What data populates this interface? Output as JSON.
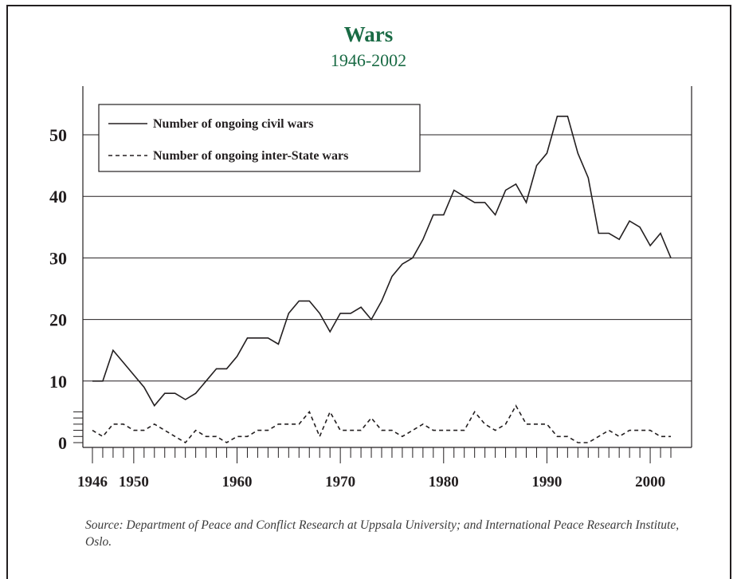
{
  "chart_data": {
    "type": "line",
    "title": "Wars",
    "subtitle": "1946-2002",
    "xlabel": "",
    "ylabel": "",
    "xlim": [
      1946,
      2002
    ],
    "ylim": [
      0,
      55
    ],
    "x_ticks": [
      1946,
      1950,
      1960,
      1970,
      1980,
      1990,
      2000
    ],
    "y_ticks": [
      0,
      10,
      20,
      30,
      40,
      50
    ],
    "grid": "horizontal",
    "legend_position": "top-left",
    "x": [
      1946,
      1947,
      1948,
      1949,
      1950,
      1951,
      1952,
      1953,
      1954,
      1955,
      1956,
      1957,
      1958,
      1959,
      1960,
      1961,
      1962,
      1963,
      1964,
      1965,
      1966,
      1967,
      1968,
      1969,
      1970,
      1971,
      1972,
      1973,
      1974,
      1975,
      1976,
      1977,
      1978,
      1979,
      1980,
      1981,
      1982,
      1983,
      1984,
      1985,
      1986,
      1987,
      1988,
      1989,
      1990,
      1991,
      1992,
      1993,
      1994,
      1995,
      1996,
      1997,
      1998,
      1999,
      2000,
      2001,
      2002
    ],
    "series": [
      {
        "name": "Number of ongoing civil wars",
        "style": "solid",
        "values": [
          10,
          10,
          15,
          13,
          11,
          9,
          6,
          8,
          8,
          7,
          8,
          10,
          12,
          12,
          14,
          17,
          17,
          17,
          16,
          21,
          23,
          23,
          21,
          18,
          21,
          21,
          22,
          20,
          23,
          27,
          29,
          30,
          33,
          37,
          37,
          41,
          40,
          39,
          39,
          37,
          41,
          42,
          39,
          45,
          47,
          53,
          53,
          47,
          43,
          34,
          34,
          33,
          36,
          35,
          32,
          34,
          30
        ]
      },
      {
        "name": "Number of ongoing inter-State wars",
        "style": "dashed",
        "values": [
          2,
          1,
          3,
          3,
          2,
          2,
          3,
          2,
          1,
          0,
          2,
          1,
          1,
          0,
          1,
          1,
          2,
          2,
          3,
          3,
          3,
          5,
          1,
          5,
          2,
          2,
          2,
          4,
          2,
          2,
          1,
          2,
          3,
          2,
          2,
          2,
          2,
          5,
          3,
          2,
          3,
          6,
          3,
          3,
          3,
          1,
          1,
          0,
          0,
          1,
          2,
          1,
          2,
          2,
          2,
          1,
          1
        ]
      }
    ]
  },
  "source_note": "Source: Department of Peace and Conflict Research at Uppsala University; and International Peace Research Institute, Oslo."
}
